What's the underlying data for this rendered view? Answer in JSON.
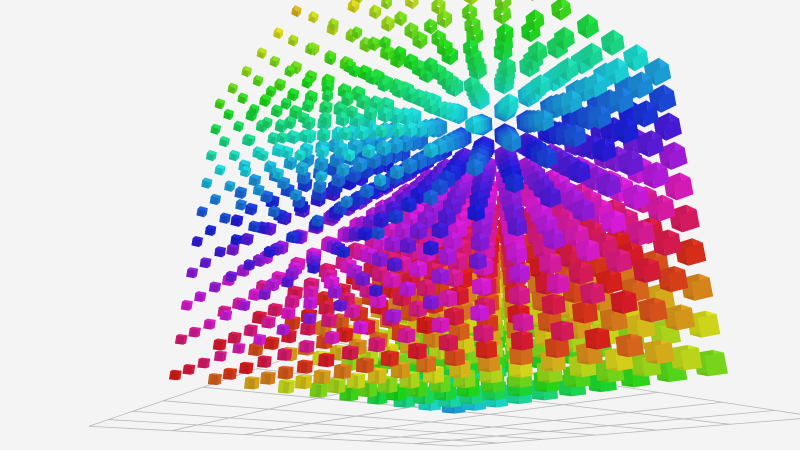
{
  "background": "#f4f4f4",
  "grid_color": "#b8b8b8",
  "scene": {
    "grid_size": 10,
    "yaw_deg": 38,
    "pitch_deg": 24,
    "floor_divisions": 6
  }
}
